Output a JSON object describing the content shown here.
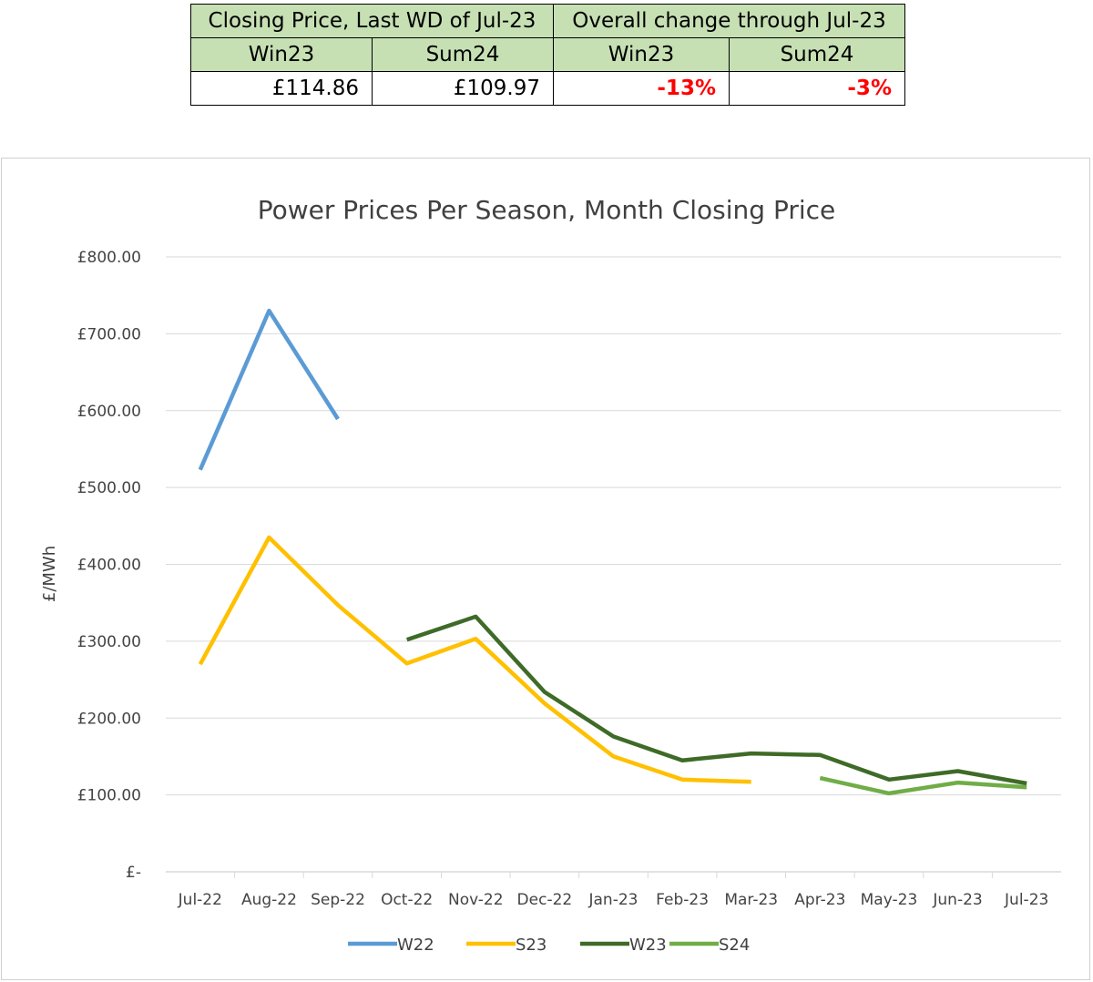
{
  "summary": {
    "header_left": "Closing Price, Last WD of Jul-23",
    "header_right": "Overall change through Jul-23",
    "sub": [
      "Win23",
      "Sum24",
      "Win23",
      "Sum24"
    ],
    "values": [
      "£114.86",
      "£109.97",
      "-13%",
      "-3%"
    ]
  },
  "chart_data": {
    "type": "line",
    "title": "Power Prices Per Season, Month Closing Price",
    "xlabel": "",
    "ylabel": "£/MWh",
    "categories": [
      "Jul-22",
      "Aug-22",
      "Sep-22",
      "Oct-22",
      "Nov-22",
      "Dec-22",
      "Jan-23",
      "Feb-23",
      "Mar-23",
      "Apr-23",
      "May-23",
      "Jun-23",
      "Jul-23"
    ],
    "ylim": [
      0,
      800
    ],
    "yticks": [
      0,
      100,
      200,
      300,
      400,
      500,
      600,
      700,
      800
    ],
    "ytick_labels": [
      "£-",
      "£100.00",
      "£200.00",
      "£300.00",
      "£400.00",
      "£500.00",
      "£600.00",
      "£700.00",
      "£800.00"
    ],
    "grid": "horizontal",
    "legend_position": "bottom",
    "series": [
      {
        "name": "W22",
        "color": "#5b9bd5",
        "values": [
          523,
          730,
          589,
          null,
          null,
          null,
          null,
          null,
          null,
          null,
          null,
          null,
          null
        ]
      },
      {
        "name": "S23",
        "color": "#ffc000",
        "values": [
          270,
          435,
          347,
          271,
          303,
          219,
          150,
          120,
          117,
          null,
          null,
          null,
          null
        ]
      },
      {
        "name": "W23",
        "color": "#3e6b27",
        "values": [
          null,
          null,
          null,
          302,
          332,
          234,
          176,
          145,
          154,
          152,
          120,
          131,
          115
        ]
      },
      {
        "name": "S24",
        "color": "#70ad47",
        "values": [
          null,
          null,
          null,
          null,
          null,
          null,
          null,
          null,
          null,
          122,
          102,
          116,
          110
        ]
      }
    ]
  }
}
